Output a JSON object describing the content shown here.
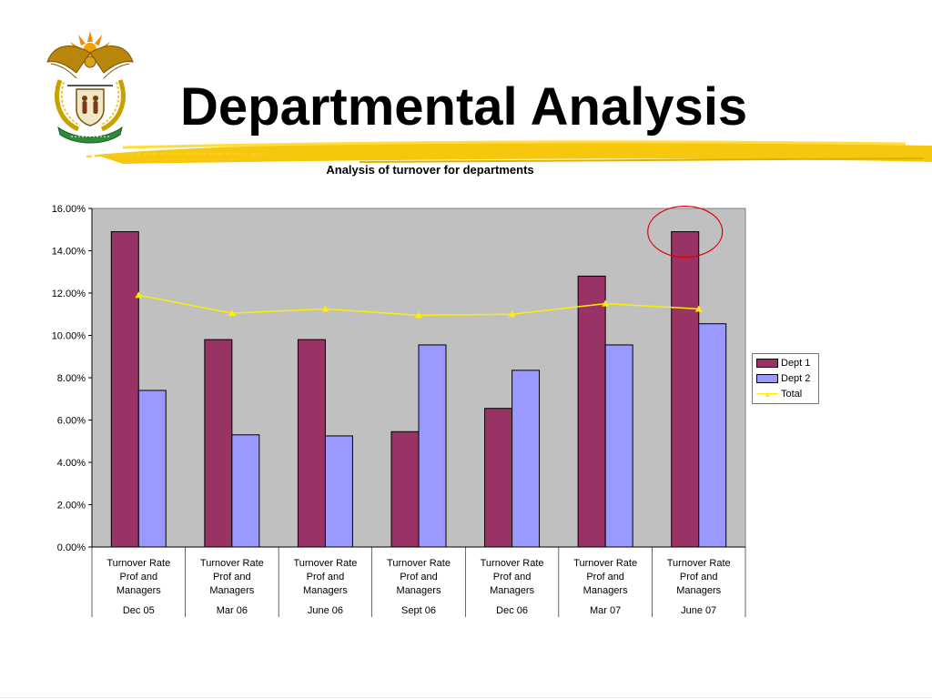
{
  "slide": {
    "title": "Departmental Analysis",
    "accent_color": "#f5c400"
  },
  "chart_data": {
    "type": "bar",
    "title": "Analysis of turnover for departments",
    "categories": [
      {
        "metric": [
          "Turnover Rate",
          "Prof and",
          "Managers"
        ],
        "period": "Dec 05"
      },
      {
        "metric": [
          "Turnover Rate",
          "Prof and",
          "Managers"
        ],
        "period": "Mar 06"
      },
      {
        "metric": [
          "Turnover Rate",
          "Prof and",
          "Managers"
        ],
        "period": "June 06"
      },
      {
        "metric": [
          "Turnover Rate",
          "Prof and",
          "Managers"
        ],
        "period": "Sept 06"
      },
      {
        "metric": [
          "Turnover Rate",
          "Prof and",
          "Managers"
        ],
        "period": "Dec 06"
      },
      {
        "metric": [
          "Turnover Rate",
          "Prof and",
          "Managers"
        ],
        "period": "Mar 07"
      },
      {
        "metric": [
          "Turnover Rate",
          "Prof and",
          "Managers"
        ],
        "period": "June 07"
      }
    ],
    "series": [
      {
        "name": "Dept 1",
        "type": "bar",
        "color": "#993366",
        "values": [
          14.9,
          9.8,
          9.8,
          5.45,
          6.55,
          12.8,
          14.9
        ]
      },
      {
        "name": "Dept 2",
        "type": "bar",
        "color": "#9999ff",
        "values": [
          7.4,
          5.3,
          5.25,
          9.55,
          8.35,
          9.55,
          10.55
        ]
      },
      {
        "name": "Total",
        "type": "line",
        "color": "#ffee00",
        "values": [
          11.9,
          11.05,
          11.25,
          10.95,
          11.0,
          11.5,
          11.25
        ]
      }
    ],
    "yticks": [
      "0.00%",
      "2.00%",
      "4.00%",
      "6.00%",
      "8.00%",
      "10.00%",
      "12.00%",
      "14.00%",
      "16.00%"
    ],
    "ylim": [
      0,
      16
    ],
    "plot_background": "#c0c0c0",
    "legend_position": "right",
    "highlight": {
      "category_index": 6,
      "series": "Dept 1",
      "color": "#dd0000"
    }
  }
}
